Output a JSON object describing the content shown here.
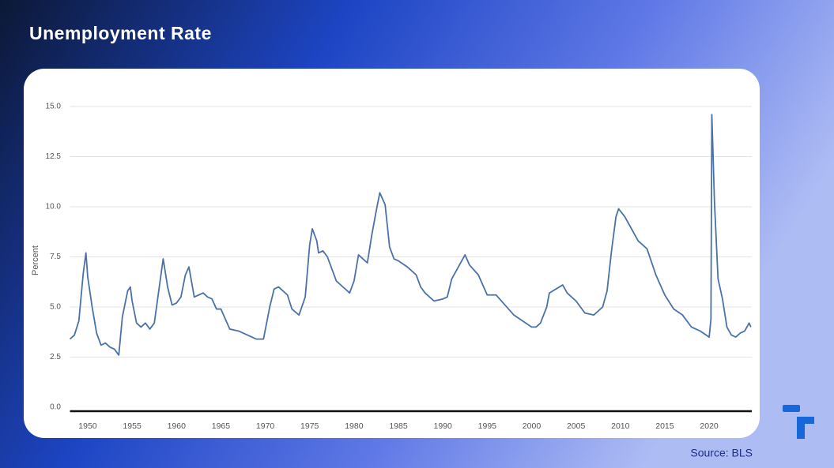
{
  "chart_data": {
    "type": "line",
    "title": "Unemployment Rate",
    "y_label": "Percent",
    "source": "Source: BLS",
    "color": "#4a72a8",
    "grid": true,
    "xlim": [
      1948,
      2024.8
    ],
    "xticks": [
      1950,
      1955,
      1960,
      1965,
      1970,
      1975,
      1980,
      1985,
      1990,
      1995,
      2000,
      2005,
      2010,
      2015,
      2020
    ],
    "ylim": [
      0,
      15
    ],
    "yticks": [
      {
        "value": 0,
        "label": "0.0"
      },
      2.5,
      {
        "value": 5,
        "label": "5.0"
      },
      7.5,
      {
        "value": 10,
        "label": "10.0"
      },
      12.5,
      {
        "value": 15,
        "label": "15.0"
      }
    ],
    "x": [
      1948.0,
      1948.5,
      1949.0,
      1949.5,
      1949.8,
      1950.0,
      1950.5,
      1951.0,
      1951.5,
      1952.0,
      1952.5,
      1953.0,
      1953.5,
      1953.9,
      1954.5,
      1954.8,
      1955.0,
      1955.5,
      1956.0,
      1956.5,
      1957.0,
      1957.5,
      1958.0,
      1958.5,
      1959.0,
      1959.5,
      1960.0,
      1960.5,
      1961.0,
      1961.4,
      1962.0,
      1963.0,
      1963.5,
      1964.0,
      1964.5,
      1965.0,
      1965.5,
      1966.0,
      1967.0,
      1968.0,
      1969.0,
      1969.8,
      1970.5,
      1971.0,
      1971.5,
      1972.0,
      1972.5,
      1973.0,
      1973.8,
      1974.5,
      1975.0,
      1975.3,
      1975.8,
      1976.0,
      1976.5,
      1977.0,
      1977.5,
      1978.0,
      1979.0,
      1979.5,
      1980.0,
      1980.5,
      1981.0,
      1981.5,
      1982.0,
      1982.5,
      1982.9,
      1983.5,
      1984.0,
      1984.5,
      1985.0,
      1986.0,
      1987.0,
      1987.5,
      1988.0,
      1989.0,
      1990.0,
      1990.5,
      1991.0,
      1991.5,
      1992.5,
      1993.0,
      1994.0,
      1995.0,
      1996.0,
      1997.0,
      1998.0,
      1999.0,
      2000.0,
      2000.5,
      2001.0,
      2001.7,
      2002.0,
      2003.5,
      2004.0,
      2005.0,
      2006.0,
      2007.0,
      2008.0,
      2008.5,
      2009.0,
      2009.5,
      2009.8,
      2010.5,
      2011.0,
      2012.0,
      2013.0,
      2014.0,
      2015.0,
      2016.0,
      2017.0,
      2018.0,
      2019.0,
      2020.0,
      2020.2,
      2020.3,
      2020.6,
      2021.0,
      2021.5,
      2022.0,
      2022.5,
      2023.0,
      2023.5,
      2024.0,
      2024.5,
      2024.7
    ],
    "values": [
      3.4,
      3.6,
      4.3,
      6.7,
      7.7,
      6.5,
      5.0,
      3.7,
      3.1,
      3.2,
      3.0,
      2.9,
      2.6,
      4.5,
      5.8,
      6.0,
      5.3,
      4.2,
      4.0,
      4.2,
      3.9,
      4.2,
      5.8,
      7.4,
      6.0,
      5.1,
      5.2,
      5.5,
      6.6,
      7.0,
      5.5,
      5.7,
      5.5,
      5.4,
      4.9,
      4.9,
      4.4,
      3.9,
      3.8,
      3.6,
      3.4,
      3.4,
      5.0,
      5.9,
      6.0,
      5.8,
      5.6,
      4.9,
      4.6,
      5.5,
      8.1,
      8.9,
      8.3,
      7.7,
      7.8,
      7.5,
      6.9,
      6.3,
      5.9,
      5.7,
      6.3,
      7.6,
      7.4,
      7.2,
      8.6,
      9.8,
      10.7,
      10.1,
      8.0,
      7.4,
      7.3,
      7.0,
      6.6,
      6.0,
      5.7,
      5.3,
      5.4,
      5.5,
      6.4,
      6.8,
      7.6,
      7.1,
      6.6,
      5.6,
      5.6,
      5.1,
      4.6,
      4.3,
      4.0,
      4.0,
      4.2,
      5.0,
      5.7,
      6.1,
      5.7,
      5.3,
      4.7,
      4.6,
      5.0,
      5.8,
      7.8,
      9.5,
      9.9,
      9.5,
      9.1,
      8.3,
      7.9,
      6.6,
      5.6,
      4.9,
      4.6,
      4.0,
      3.8,
      3.5,
      4.4,
      14.6,
      10.2,
      6.4,
      5.4,
      4.0,
      3.6,
      3.5,
      3.7,
      3.8,
      4.2,
      4.0
    ]
  }
}
